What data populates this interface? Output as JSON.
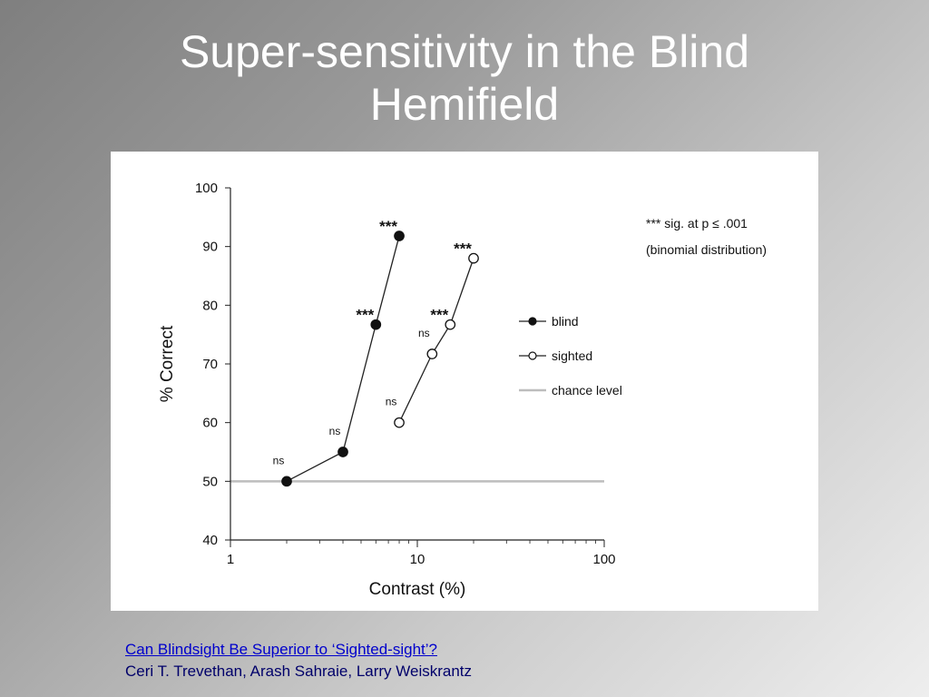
{
  "slide": {
    "title_line1": "Super-sensitivity in the Blind",
    "title_line2": "Hemifield"
  },
  "citation": {
    "link_text": "Can Blindsight Be Superior to ‘Sighted-sight’?",
    "authors": "Ceri T. Trevethan, Arash Sahraie, Larry Weiskrantz"
  },
  "chart_data": {
    "type": "line",
    "xlabel": "Contrast (%)",
    "ylabel": "% Correct",
    "xscale": "log",
    "xlim": [
      1,
      100
    ],
    "ylim": [
      40,
      100
    ],
    "xticks": [
      "1",
      "10",
      "100"
    ],
    "yticks": [
      "40",
      "50",
      "60",
      "70",
      "80",
      "90",
      "100"
    ],
    "grid": false,
    "legend_position": "right",
    "series": [
      {
        "name": "blind",
        "marker": "filled",
        "x": [
          2,
          4,
          6,
          8
        ],
        "y": [
          50,
          55,
          76.7,
          91.8
        ],
        "labels": [
          "ns",
          "ns",
          "***",
          "***"
        ]
      },
      {
        "name": "sighted",
        "marker": "open",
        "x": [
          8,
          12,
          15,
          20
        ],
        "y": [
          60,
          71.7,
          76.7,
          88
        ],
        "labels": [
          "ns",
          "ns",
          "***",
          "***"
        ]
      }
    ],
    "reference_line": {
      "name": "chance level",
      "y": 50,
      "color": "#bdbdbd"
    },
    "annotations": [
      "*** sig. at p  ≤ .001",
      "(binomial distribution)"
    ]
  }
}
